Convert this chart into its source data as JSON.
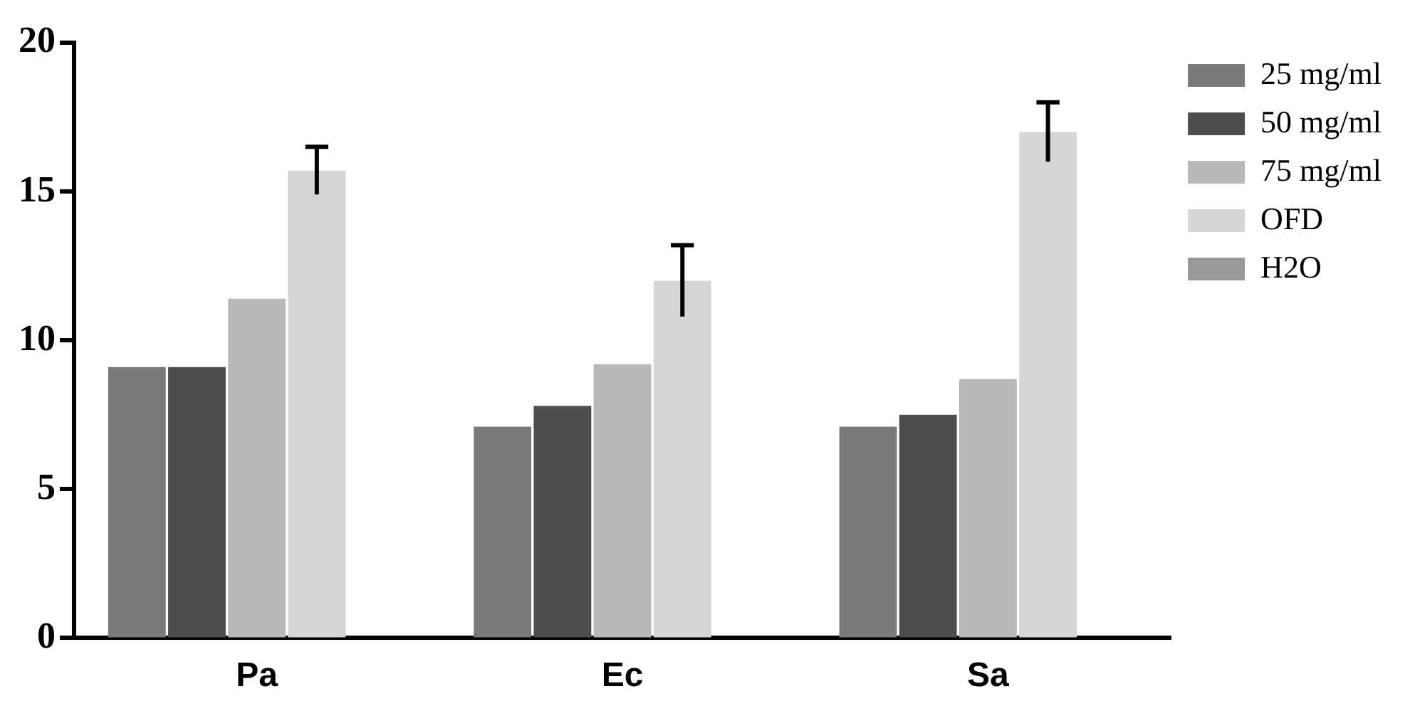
{
  "chart_data": {
    "type": "bar",
    "categories": [
      "Pa",
      "Ec",
      "Sa"
    ],
    "series": [
      {
        "name": "25 mg/ml",
        "color": "#7a7a7a",
        "values": [
          9.1,
          7.1,
          7.1
        ]
      },
      {
        "name": "50 mg/ml",
        "color": "#4d4d4d",
        "values": [
          9.1,
          7.8,
          7.5
        ]
      },
      {
        "name": "75 mg/ml",
        "color": "#b8b8b8",
        "values": [
          11.4,
          9.2,
          8.7
        ]
      },
      {
        "name": "OFD",
        "color": "#d6d6d6",
        "values": [
          15.7,
          12.0,
          17.0
        ],
        "errors": [
          0.8,
          1.2,
          1.0
        ]
      },
      {
        "name": "H2O",
        "color": "#999999",
        "values": [
          0,
          0,
          0
        ]
      }
    ],
    "ylim": [
      0,
      20
    ],
    "yticks": [
      0,
      5,
      10,
      15,
      20
    ],
    "grid": false,
    "legend": "top right"
  }
}
